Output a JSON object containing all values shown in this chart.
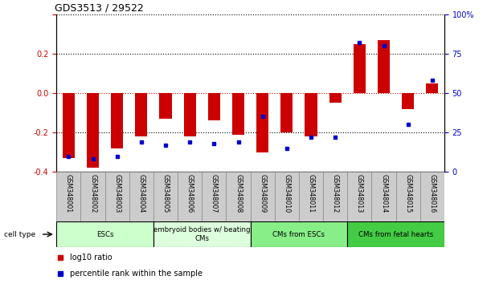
{
  "title": "GDS3513 / 29522",
  "samples": [
    "GSM348001",
    "GSM348002",
    "GSM348003",
    "GSM348004",
    "GSM348005",
    "GSM348006",
    "GSM348007",
    "GSM348008",
    "GSM348009",
    "GSM348010",
    "GSM348011",
    "GSM348012",
    "GSM348013",
    "GSM348014",
    "GSM348015",
    "GSM348016"
  ],
  "log10_ratio": [
    -0.33,
    -0.38,
    -0.28,
    -0.22,
    -0.13,
    -0.22,
    -0.14,
    -0.21,
    -0.3,
    -0.2,
    -0.22,
    -0.05,
    0.25,
    0.27,
    -0.08,
    0.05
  ],
  "percentile_rank": [
    10,
    8,
    10,
    19,
    17,
    19,
    18,
    19,
    35,
    15,
    22,
    22,
    82,
    80,
    30,
    58
  ],
  "ylim_left": [
    -0.4,
    0.4
  ],
  "ylim_right": [
    0,
    100
  ],
  "bar_color": "#CC0000",
  "dot_color": "#0000CC",
  "cell_types": [
    {
      "label": "ESCs",
      "start": 0,
      "end": 4,
      "color": "#CCFFCC"
    },
    {
      "label": "embryoid bodies w/ beating\nCMs",
      "start": 4,
      "end": 8,
      "color": "#DDFFDD"
    },
    {
      "label": "CMs from ESCs",
      "start": 8,
      "end": 12,
      "color": "#88EE88"
    },
    {
      "label": "CMs from fetal hearts",
      "start": 12,
      "end": 16,
      "color": "#44CC44"
    }
  ],
  "legend_red": "log10 ratio",
  "legend_blue": "percentile rank within the sample",
  "yticks_left": [
    -0.4,
    -0.2,
    0.0,
    0.2,
    0.4
  ],
  "yticks_right": [
    0,
    25,
    50,
    75,
    100
  ],
  "ytick_labels_right": [
    "0",
    "25",
    "50",
    "75",
    "100%"
  ],
  "bar_width": 0.5,
  "sample_box_color": "#CCCCCC",
  "sample_box_edge": "#888888"
}
